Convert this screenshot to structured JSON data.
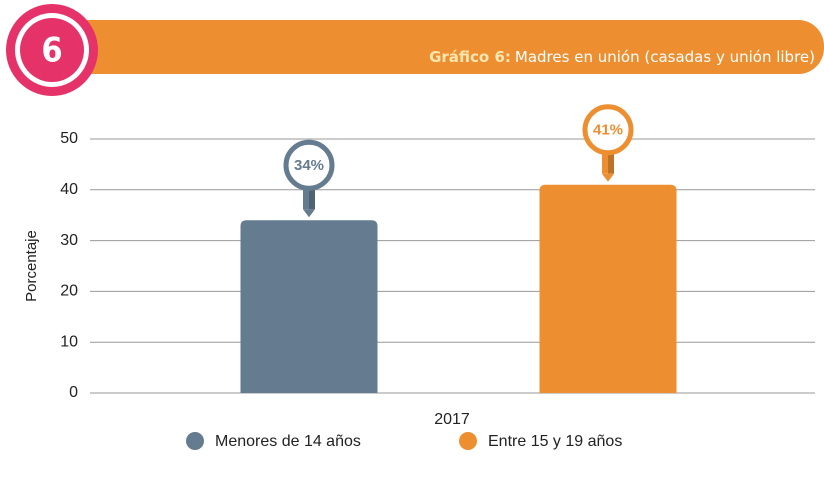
{
  "chart_data": {
    "type": "bar",
    "badge": "6",
    "title_prefix": "Gráfico 6:",
    "title": "Madres en unión (casadas y unión libre)",
    "ylabel": "Porcentaje",
    "categories": [
      "2017"
    ],
    "series": [
      {
        "name": "Menores de 14 años",
        "color": "#657b8f",
        "values": [
          34
        ],
        "value_labels": [
          "34%"
        ]
      },
      {
        "name": "Entre 15 y 19 años",
        "color": "#ed8f31",
        "values": [
          41
        ],
        "value_labels": [
          "41%"
        ]
      }
    ],
    "ylim": [
      0,
      50
    ],
    "yticks": [
      0,
      10,
      20,
      30,
      40,
      50
    ],
    "grid": true,
    "legend": "bottom"
  }
}
